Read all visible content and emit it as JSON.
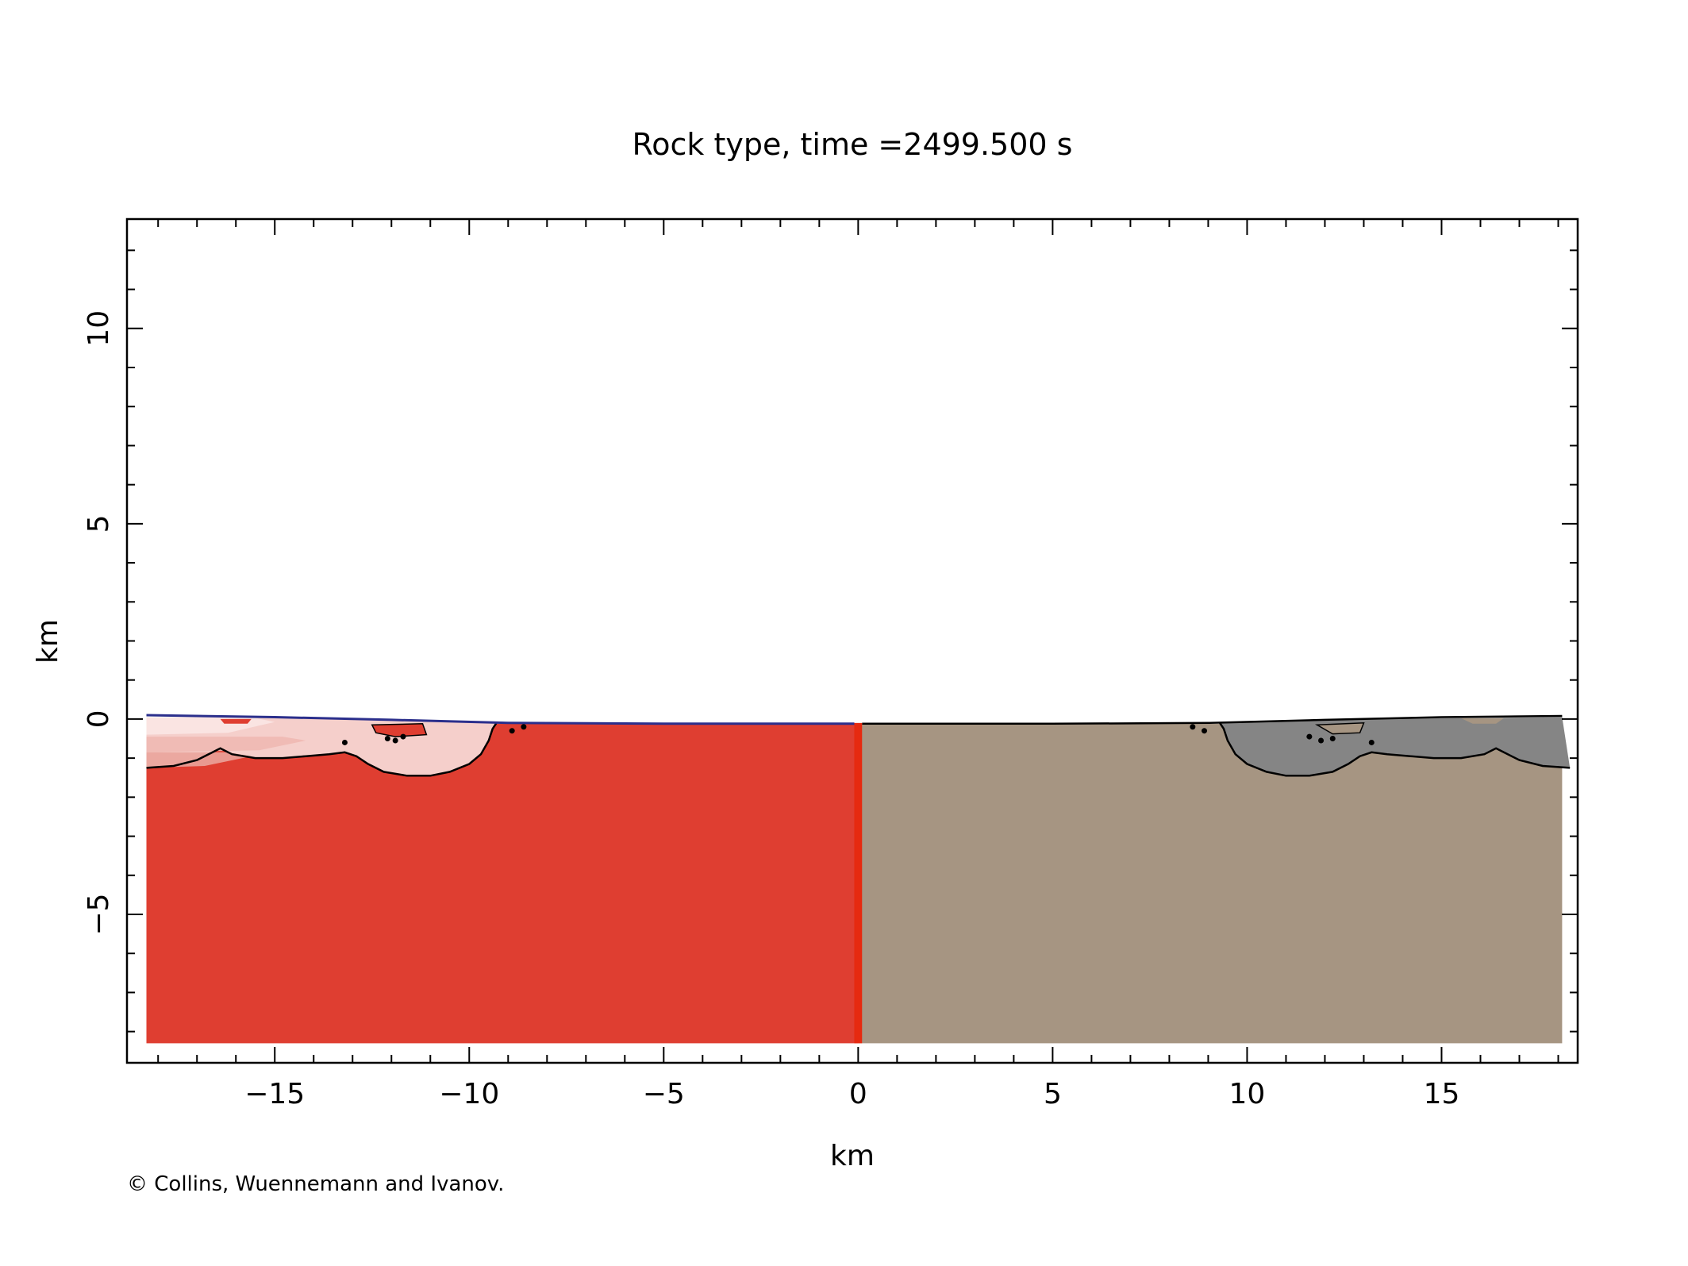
{
  "chart_data": {
    "type": "area",
    "title": "Rock type, time =2499.500 s",
    "xlabel": "km",
    "ylabel": "km",
    "xlim": [
      -18.8,
      18.5
    ],
    "ylim": [
      -8.8,
      12.8
    ],
    "x_ticks": [
      -15,
      -10,
      -5,
      0,
      5,
      10,
      15
    ],
    "x_tick_labels": [
      "−15",
      "−10",
      "−5",
      "0",
      "5",
      "10",
      "15"
    ],
    "y_ticks": [
      -5,
      0,
      5,
      10
    ],
    "y_tick_labels": [
      "−5",
      "0",
      "5",
      "10"
    ],
    "domain_x": [
      -18.3,
      18.1
    ],
    "domain_bottom_y": -8.3,
    "left_half": {
      "color": "#df3e31",
      "layer_colors": [
        "#fbe6e4",
        "#f5cfcb",
        "#f0b8b2",
        "#eaa39b"
      ],
      "x_range": [
        -18.3,
        0
      ]
    },
    "right_half": {
      "color": "#a69582",
      "layer_color": "#858585",
      "x_range": [
        0,
        18.1
      ]
    },
    "centerline_color": "#e62a10",
    "surface_line_color": "#2b2f8c",
    "crater_contour": [
      [
        -18.3,
        -1.25
      ],
      [
        -17.6,
        -1.2
      ],
      [
        -17.0,
        -1.05
      ],
      [
        -16.6,
        -0.85
      ],
      [
        -16.4,
        -0.75
      ],
      [
        -16.1,
        -0.9
      ],
      [
        -15.5,
        -1.0
      ],
      [
        -14.8,
        -1.0
      ],
      [
        -14.2,
        -0.95
      ],
      [
        -13.6,
        -0.9
      ],
      [
        -13.2,
        -0.85
      ],
      [
        -12.9,
        -0.95
      ],
      [
        -12.6,
        -1.15
      ],
      [
        -12.2,
        -1.35
      ],
      [
        -11.6,
        -1.45
      ],
      [
        -11.0,
        -1.45
      ],
      [
        -10.5,
        -1.35
      ],
      [
        -10.0,
        -1.15
      ],
      [
        -9.7,
        -0.9
      ],
      [
        -9.5,
        -0.55
      ],
      [
        -9.4,
        -0.25
      ],
      [
        -9.3,
        -0.1
      ]
    ],
    "grid": false,
    "legend": "none"
  },
  "footer": {
    "copyright": "© Collins, Wuennemann and Ivanov."
  }
}
